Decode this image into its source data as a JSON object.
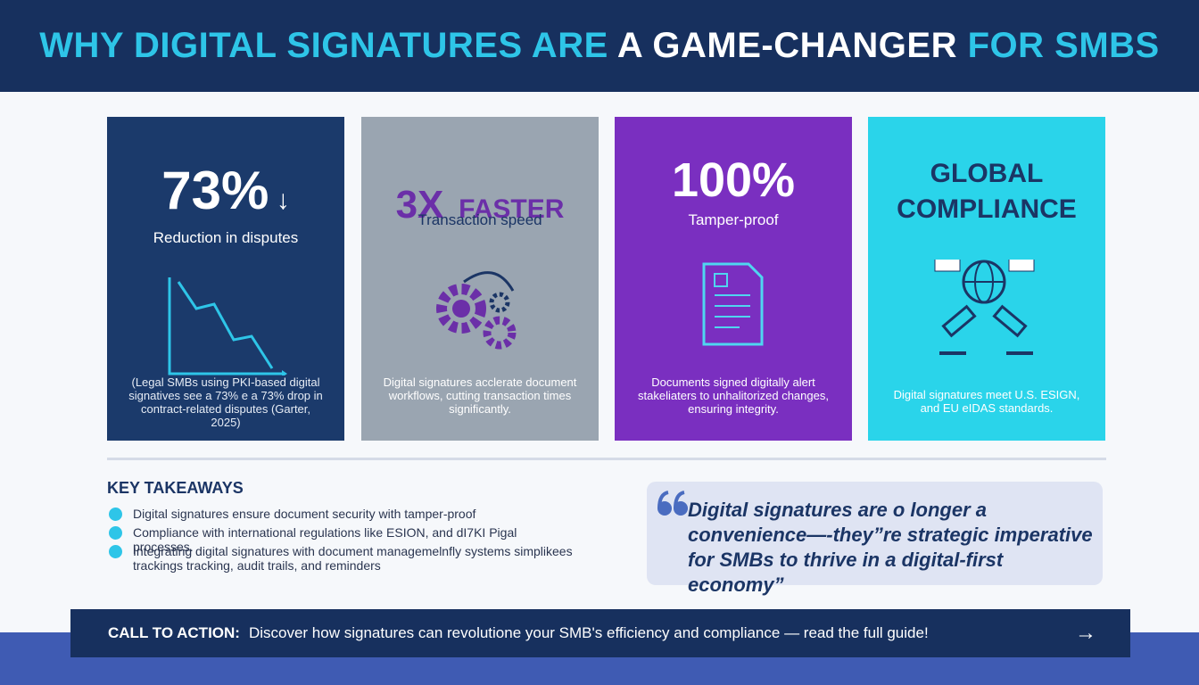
{
  "header": {
    "title": {
      "part1": "WHY DIGITAL SIGNATURES ARE",
      "part2": "A GAME-CHANGER",
      "part3": "FOR SMBS"
    }
  },
  "cards": [
    {
      "stat": "73%",
      "label": "Reduction in disputes",
      "description": "(Legal SMBs using PKI-based digital signatives see a 73% e a 73% drop in contract-related disputes (Garter, 2025)"
    },
    {
      "stat": "3X",
      "stat_suffix": "FASTER",
      "label": "Transaction speed",
      "description": "Digital signatures acclerate document workflows, cutting transaction times significantly."
    },
    {
      "stat": "100%",
      "label": "Tamper-proof",
      "description": "Documents signed digitally alert stakeliaters to unhalitorized changes, ensuring integrity."
    },
    {
      "stat": "GLOBAL COMPLIANCE",
      "description": "Digital signatures meet U.S. ESIGN, and EU eIDAS standards."
    }
  ],
  "key_takeaways": {
    "heading": "KEY TAKEAWAYS",
    "items": [
      "Digital signatures ensure document security with tamper-proof",
      "Compliance with international regulations like ESION, and dI7KI Pigal processes.",
      "Integrating digital signatures with document managemelnfly systems simplikees trackings tracking, audit trails, and reminders"
    ]
  },
  "quote": "Digital signatures are o longer a convenience—-they”re strategic imperative for SMBs to thrive in a digital-first economy”",
  "cta": {
    "label": "CALL TO ACTION:",
    "text": "Discover how signatures can revolutione your SMB's efficiency and compliance — read the full guide!"
  }
}
